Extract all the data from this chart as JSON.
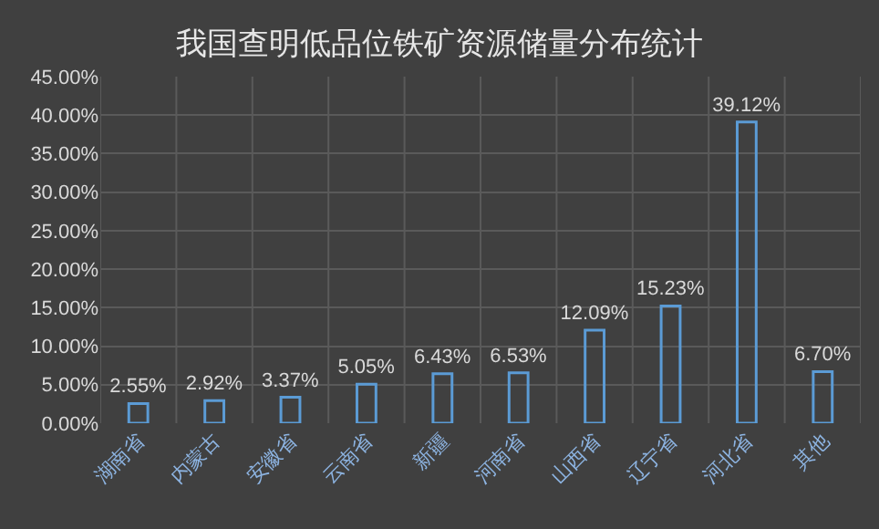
{
  "chart_data": {
    "type": "bar",
    "title": "我国查明低品位铁矿资源储量分布统计",
    "categories": [
      "湖南省",
      "内蒙古",
      "安徽省",
      "云南省",
      "新疆",
      "河南省",
      "山西省",
      "辽宁省",
      "河北省",
      "其他"
    ],
    "values": [
      2.55,
      2.92,
      3.37,
      5.05,
      6.43,
      6.53,
      12.09,
      15.23,
      39.12,
      6.7
    ],
    "value_labels": [
      "2.55%",
      "2.92%",
      "3.37%",
      "5.05%",
      "6.43%",
      "6.53%",
      "12.09%",
      "15.23%",
      "39.12%",
      "6.70%"
    ],
    "color": "#5b9bd5",
    "ylim": [
      0,
      45
    ],
    "yticks": [
      {
        "value": 0,
        "label": "0.00%"
      },
      {
        "value": 5,
        "label": "5.00%"
      },
      {
        "value": 10,
        "label": "10.00%"
      },
      {
        "value": 15,
        "label": "15.00%"
      },
      {
        "value": 20,
        "label": "20.00%"
      },
      {
        "value": 25,
        "label": "25.00%"
      },
      {
        "value": 30,
        "label": "30.00%"
      },
      {
        "value": 35,
        "label": "35.00%"
      },
      {
        "value": 40,
        "label": "40.00%"
      },
      {
        "value": 45,
        "label": "45.00%"
      }
    ],
    "grid": true
  }
}
